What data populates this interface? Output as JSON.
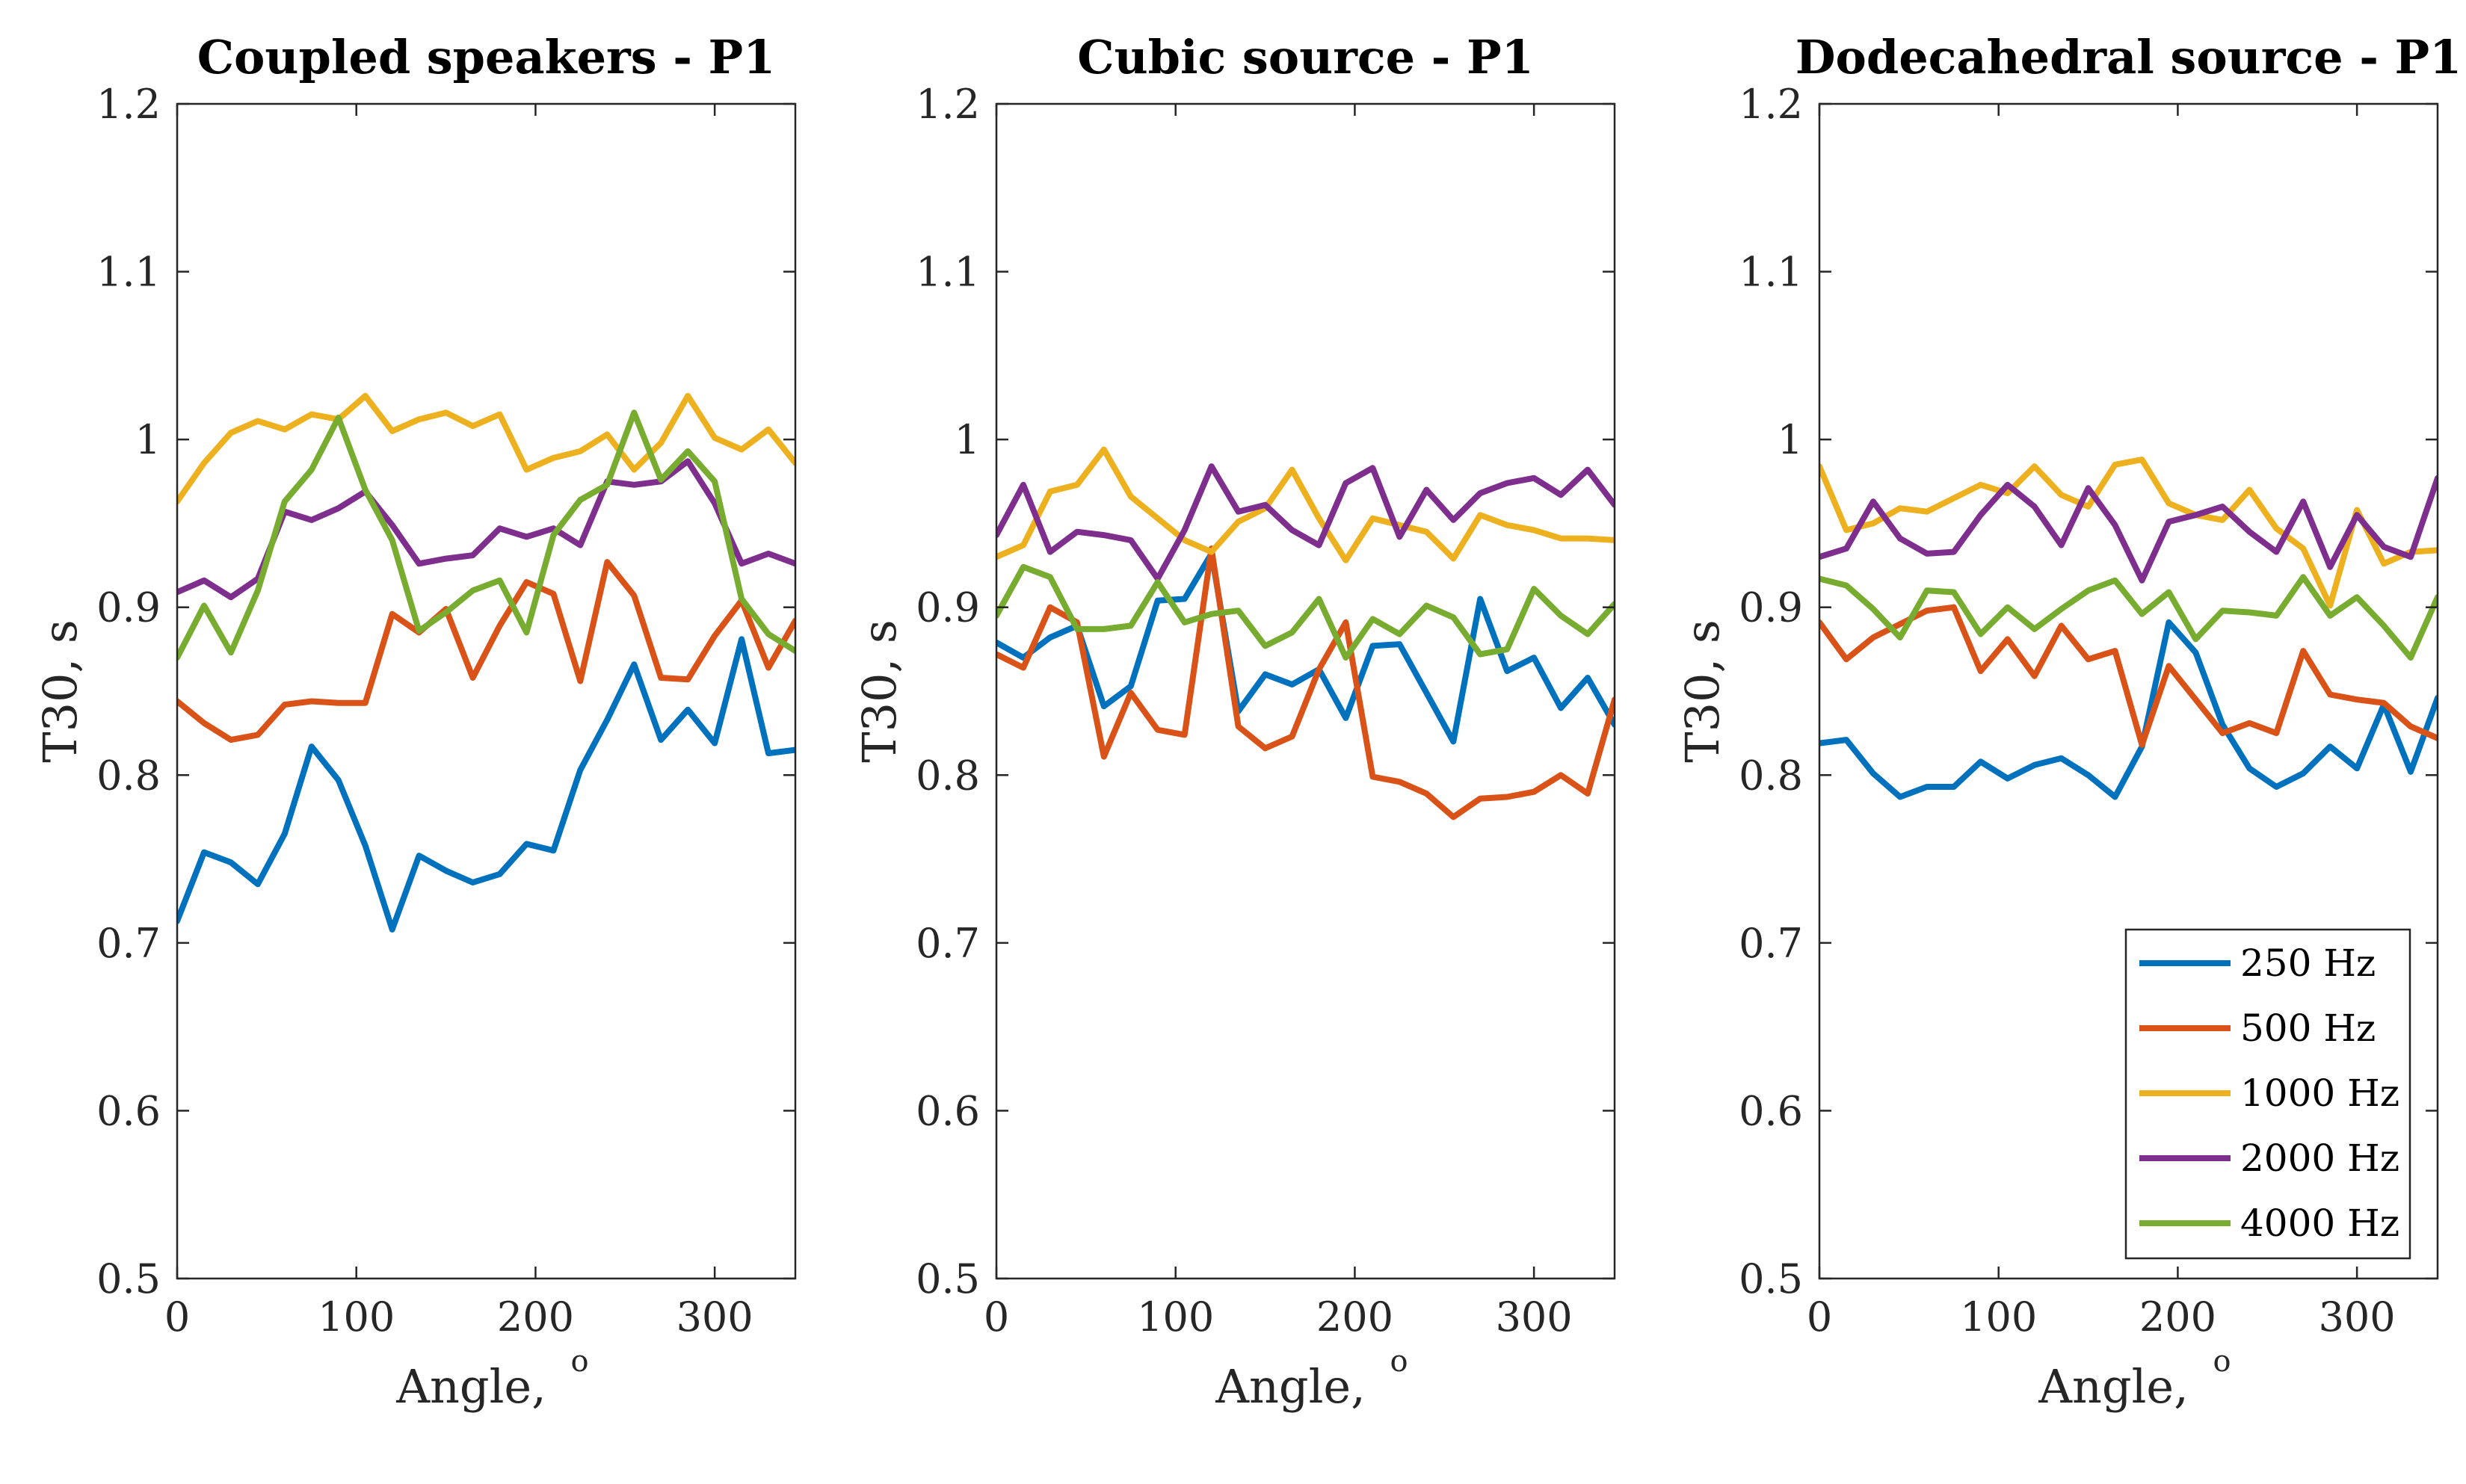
{
  "figure": {
    "background": "#ffffff",
    "axis_color": "#262626"
  },
  "chart_data": [
    {
      "type": "line",
      "title": "Coupled speakers - P1",
      "xlabel": "Angle,",
      "xlabel_sup": "o",
      "ylabel": "T30, s",
      "xlim": [
        0,
        345
      ],
      "ylim": [
        0.5,
        1.2
      ],
      "xticks": [
        "0",
        "100",
        "200",
        "300"
      ],
      "yticks": [
        "0.5",
        "0.6",
        "0.7",
        "0.8",
        "0.9",
        "1",
        "1.1",
        "1.2"
      ],
      "grid": false,
      "legend": null,
      "x": [
        0,
        15,
        30,
        45,
        60,
        75,
        90,
        105,
        120,
        135,
        150,
        165,
        180,
        195,
        210,
        225,
        240,
        255,
        270,
        285,
        300,
        315,
        330,
        345
      ],
      "series": [
        {
          "name": "250 Hz",
          "color": "#0072BD",
          "values": [
            0.713,
            0.754,
            0.748,
            0.735,
            0.765,
            0.817,
            0.797,
            0.758,
            0.708,
            0.752,
            0.743,
            0.736,
            0.741,
            0.759,
            0.755,
            0.803,
            0.833,
            0.866,
            0.821,
            0.839,
            0.819,
            0.881,
            0.813,
            0.815
          ]
        },
        {
          "name": "500 Hz",
          "color": "#D95319",
          "values": [
            0.844,
            0.831,
            0.821,
            0.824,
            0.842,
            0.844,
            0.843,
            0.843,
            0.896,
            0.885,
            0.899,
            0.858,
            0.889,
            0.915,
            0.908,
            0.856,
            0.927,
            0.907,
            0.858,
            0.857,
            0.883,
            0.904,
            0.864,
            0.892
          ]
        },
        {
          "name": "1000 Hz",
          "color": "#EDB120",
          "values": [
            0.963,
            0.986,
            1.004,
            1.011,
            1.006,
            1.015,
            1.012,
            1.026,
            1.005,
            1.012,
            1.016,
            1.008,
            1.015,
            0.982,
            0.989,
            0.993,
            1.003,
            0.982,
            0.998,
            1.026,
            1.001,
            0.994,
            1.006,
            0.986
          ]
        },
        {
          "name": "2000 Hz",
          "color": "#7E2F8E",
          "values": [
            0.909,
            0.916,
            0.906,
            0.917,
            0.957,
            0.952,
            0.959,
            0.969,
            0.949,
            0.926,
            0.929,
            0.931,
            0.947,
            0.942,
            0.947,
            0.937,
            0.975,
            0.973,
            0.975,
            0.987,
            0.962,
            0.926,
            0.932,
            0.926
          ]
        },
        {
          "name": "4000 Hz",
          "color": "#77AC30",
          "values": [
            0.87,
            0.901,
            0.873,
            0.91,
            0.963,
            0.982,
            1.013,
            0.97,
            0.94,
            0.886,
            0.897,
            0.91,
            0.916,
            0.885,
            0.943,
            0.964,
            0.973,
            1.016,
            0.976,
            0.993,
            0.975,
            0.905,
            0.884,
            0.874
          ]
        }
      ]
    },
    {
      "type": "line",
      "title": "Cubic source - P1",
      "xlabel": "Angle,",
      "xlabel_sup": "o",
      "ylabel": "T30, s",
      "xlim": [
        0,
        345
      ],
      "ylim": [
        0.5,
        1.2
      ],
      "xticks": [
        "0",
        "100",
        "200",
        "300"
      ],
      "yticks": [
        "0.5",
        "0.6",
        "0.7",
        "0.8",
        "0.9",
        "1",
        "1.1",
        "1.2"
      ],
      "grid": false,
      "legend": null,
      "x": [
        0,
        15,
        30,
        45,
        60,
        75,
        90,
        105,
        120,
        135,
        150,
        165,
        180,
        195,
        210,
        225,
        240,
        255,
        270,
        285,
        300,
        315,
        330,
        345
      ],
      "series": [
        {
          "name": "250 Hz",
          "color": "#0072BD",
          "values": [
            0.879,
            0.87,
            0.882,
            0.889,
            0.841,
            0.853,
            0.904,
            0.905,
            0.932,
            0.838,
            0.86,
            0.854,
            0.863,
            0.834,
            0.877,
            0.878,
            0.849,
            0.82,
            0.905,
            0.862,
            0.87,
            0.84,
            0.858,
            0.83
          ]
        },
        {
          "name": "500 Hz",
          "color": "#D95319",
          "values": [
            0.872,
            0.864,
            0.9,
            0.891,
            0.811,
            0.849,
            0.827,
            0.824,
            0.935,
            0.829,
            0.816,
            0.823,
            0.863,
            0.891,
            0.799,
            0.796,
            0.789,
            0.775,
            0.786,
            0.787,
            0.79,
            0.8,
            0.789,
            0.845
          ]
        },
        {
          "name": "1000 Hz",
          "color": "#EDB120",
          "values": [
            0.93,
            0.937,
            0.969,
            0.973,
            0.994,
            0.966,
            0.953,
            0.94,
            0.933,
            0.951,
            0.959,
            0.982,
            0.953,
            0.928,
            0.953,
            0.949,
            0.945,
            0.929,
            0.955,
            0.949,
            0.946,
            0.941,
            0.941,
            0.94
          ]
        },
        {
          "name": "2000 Hz",
          "color": "#7E2F8E",
          "values": [
            0.943,
            0.973,
            0.933,
            0.945,
            0.943,
            0.94,
            0.917,
            0.946,
            0.984,
            0.957,
            0.961,
            0.946,
            0.937,
            0.974,
            0.983,
            0.942,
            0.97,
            0.952,
            0.968,
            0.974,
            0.977,
            0.967,
            0.982,
            0.961
          ]
        },
        {
          "name": "4000 Hz",
          "color": "#77AC30",
          "values": [
            0.895,
            0.924,
            0.918,
            0.887,
            0.887,
            0.889,
            0.915,
            0.891,
            0.896,
            0.898,
            0.877,
            0.885,
            0.905,
            0.87,
            0.893,
            0.884,
            0.901,
            0.894,
            0.872,
            0.875,
            0.911,
            0.895,
            0.884,
            0.902
          ]
        }
      ]
    },
    {
      "type": "line",
      "title": "Dodecahedral source - P1",
      "xlabel": "Angle,",
      "xlabel_sup": "o",
      "ylabel": "T30, s",
      "xlim": [
        0,
        345
      ],
      "ylim": [
        0.5,
        1.2
      ],
      "xticks": [
        "0",
        "100",
        "200",
        "300"
      ],
      "yticks": [
        "0.5",
        "0.6",
        "0.7",
        "0.8",
        "0.9",
        "1",
        "1.1",
        "1.2"
      ],
      "grid": false,
      "legend": "bottom-right",
      "x": [
        0,
        15,
        30,
        45,
        60,
        75,
        90,
        105,
        120,
        135,
        150,
        165,
        180,
        195,
        210,
        225,
        240,
        255,
        270,
        285,
        300,
        315,
        330,
        345
      ],
      "series": [
        {
          "name": "250 Hz",
          "color": "#0072BD",
          "values": [
            0.819,
            0.821,
            0.801,
            0.787,
            0.793,
            0.793,
            0.808,
            0.798,
            0.806,
            0.81,
            0.8,
            0.787,
            0.817,
            0.891,
            0.873,
            0.83,
            0.804,
            0.793,
            0.801,
            0.817,
            0.804,
            0.842,
            0.802,
            0.846
          ]
        },
        {
          "name": "500 Hz",
          "color": "#D95319",
          "values": [
            0.891,
            0.869,
            0.882,
            0.89,
            0.898,
            0.9,
            0.862,
            0.881,
            0.859,
            0.889,
            0.869,
            0.874,
            0.818,
            0.865,
            0.845,
            0.825,
            0.831,
            0.825,
            0.874,
            0.848,
            0.845,
            0.843,
            0.829,
            0.822
          ]
        },
        {
          "name": "1000 Hz",
          "color": "#EDB120",
          "values": [
            0.984,
            0.946,
            0.95,
            0.959,
            0.957,
            0.965,
            0.973,
            0.968,
            0.984,
            0.967,
            0.96,
            0.985,
            0.988,
            0.962,
            0.955,
            0.952,
            0.97,
            0.947,
            0.935,
            0.901,
            0.958,
            0.926,
            0.933,
            0.934
          ]
        },
        {
          "name": "2000 Hz",
          "color": "#7E2F8E",
          "values": [
            0.93,
            0.935,
            0.963,
            0.941,
            0.932,
            0.933,
            0.955,
            0.973,
            0.96,
            0.937,
            0.971,
            0.949,
            0.916,
            0.951,
            0.955,
            0.96,
            0.945,
            0.933,
            0.963,
            0.924,
            0.955,
            0.936,
            0.93,
            0.977
          ]
        },
        {
          "name": "4000 Hz",
          "color": "#77AC30",
          "values": [
            0.917,
            0.913,
            0.899,
            0.882,
            0.91,
            0.909,
            0.884,
            0.9,
            0.887,
            0.899,
            0.91,
            0.916,
            0.896,
            0.909,
            0.881,
            0.898,
            0.897,
            0.895,
            0.918,
            0.895,
            0.906,
            0.889,
            0.87,
            0.906
          ]
        }
      ]
    }
  ]
}
